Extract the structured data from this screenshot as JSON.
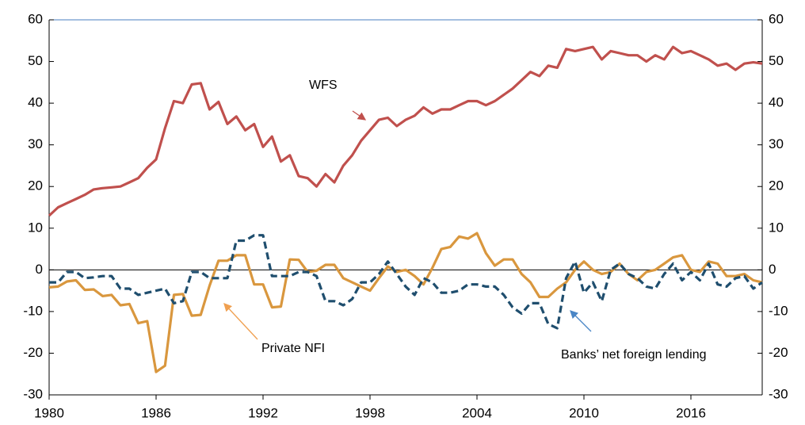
{
  "chart_data": {
    "type": "line",
    "x": [
      1980,
      1980.5,
      1981,
      1981.5,
      1982,
      1982.5,
      1983,
      1983.5,
      1984,
      1984.5,
      1985,
      1985.5,
      1986,
      1986.5,
      1987,
      1987.5,
      1988,
      1988.5,
      1989,
      1989.5,
      1990,
      1990.5,
      1991,
      1991.5,
      1992,
      1992.5,
      1993,
      1993.5,
      1994,
      1994.5,
      1995,
      1995.5,
      1996,
      1996.5,
      1997,
      1997.5,
      1998,
      1998.5,
      1999,
      1999.5,
      2000,
      2000.5,
      2001,
      2001.5,
      2002,
      2002.5,
      2003,
      2003.5,
      2004,
      2004.5,
      2005,
      2005.5,
      2006,
      2006.5,
      2007,
      2007.5,
      2008,
      2008.5,
      2009,
      2009.5,
      2010,
      2010.5,
      2011,
      2011.5,
      2012,
      2012.5,
      2013,
      2013.5,
      2014,
      2014.5,
      2015,
      2015.5,
      2016,
      2016.5,
      2017,
      2017.5,
      2018,
      2018.5,
      2019,
      2019.5,
      2020
    ],
    "series": [
      {
        "name": "WFS",
        "color": "#c0504d",
        "dashed": false,
        "values": [
          13,
          15,
          16,
          17,
          18,
          19.3,
          19.6,
          19.8,
          20,
          21,
          22,
          24.5,
          26.5,
          34,
          40.5,
          40,
          44.5,
          44.8,
          38.5,
          40.3,
          35,
          36.8,
          33.5,
          35,
          29.5,
          32,
          26,
          27.5,
          22.5,
          22,
          20,
          23,
          21,
          25,
          27.5,
          31,
          33.5,
          36,
          36.5,
          34.5,
          36,
          37,
          39,
          37.5,
          38.5,
          38.5,
          39.5,
          40.5,
          40.5,
          39.5,
          40.5,
          42,
          43.5,
          45.5,
          47.5,
          46.5,
          49,
          48.5,
          53,
          52.5,
          53,
          53.5,
          50.5,
          52.5,
          52,
          51.5,
          51.5,
          50,
          51.5,
          50.5,
          53.5,
          52,
          52.5,
          51.5,
          50.5,
          49,
          49.5,
          48,
          49.5,
          49.8,
          49.5
        ]
      },
      {
        "name": "Private NFI",
        "color": "#d9973e",
        "dashed": false,
        "values": [
          -4.2,
          -4,
          -2.8,
          -2.5,
          -4.8,
          -4.7,
          -6.3,
          -6,
          -8.5,
          -8.2,
          -12.8,
          -12.3,
          -24.5,
          -23,
          -6,
          -5.8,
          -11,
          -10.8,
          -3.8,
          2.2,
          2.2,
          3.5,
          3.5,
          -3.5,
          -3.5,
          -9,
          -8.8,
          2.5,
          2.4,
          -0.5,
          -0.2,
          1.2,
          1.2,
          -2,
          -3,
          -4,
          -5,
          -2,
          0.8,
          -0.5,
          0,
          -1.5,
          -3.5,
          0.5,
          5,
          5.5,
          8,
          7.5,
          8.8,
          4,
          1,
          2.5,
          2.5,
          -1,
          -3,
          -6.5,
          -6.5,
          -4.5,
          -3,
          0,
          2,
          0,
          -1,
          -0.5,
          1.5,
          -1,
          -2.5,
          -0.5,
          0,
          1.5,
          3,
          3.5,
          0,
          -0.5,
          2,
          1.5,
          -1.5,
          -1.5,
          -1,
          -2.5,
          -3
        ]
      },
      {
        "name": "Banks’ net foreign lending",
        "color": "#1f4e6e",
        "dashed": true,
        "values": [
          -3,
          -3,
          -0.5,
          -0.5,
          -2,
          -1.8,
          -1.5,
          -1.5,
          -4.5,
          -4.5,
          -6,
          -5.5,
          -5,
          -4.5,
          -8,
          -7.5,
          -0.5,
          -0.5,
          -2,
          -2,
          -2,
          7,
          7,
          8.3,
          8.3,
          -1.5,
          -1.5,
          -1.5,
          -0.5,
          -0.5,
          -1.5,
          -7.5,
          -7.5,
          -8.5,
          -7,
          -3,
          -3,
          -1,
          2,
          -1,
          -4,
          -6,
          -2,
          -3,
          -5.5,
          -5.5,
          -5,
          -3.5,
          -3.5,
          -4,
          -4,
          -6,
          -9,
          -10.5,
          -8,
          -8,
          -13,
          -14,
          -2,
          2,
          -5.5,
          -3,
          -7.5,
          0,
          1.5,
          -1,
          -2,
          -4,
          -4.5,
          -1,
          1.5,
          -2.5,
          -0.5,
          -2.5,
          1.5,
          -3.5,
          -4,
          -2,
          -1.5,
          -4.5,
          -3
        ]
      }
    ],
    "xlim": [
      1980,
      2020
    ],
    "xticks": [
      1980,
      1986,
      1992,
      1998,
      2004,
      2010,
      2016
    ],
    "ylim": [
      -30,
      60
    ],
    "yticks": [
      -30,
      -20,
      -10,
      0,
      10,
      20,
      30,
      40,
      50,
      60
    ],
    "y2lim": [
      -30,
      60
    ],
    "y2ticks": [
      -30,
      -20,
      -10,
      0,
      10,
      20,
      30,
      40,
      50,
      60
    ],
    "grid": false
  }
}
